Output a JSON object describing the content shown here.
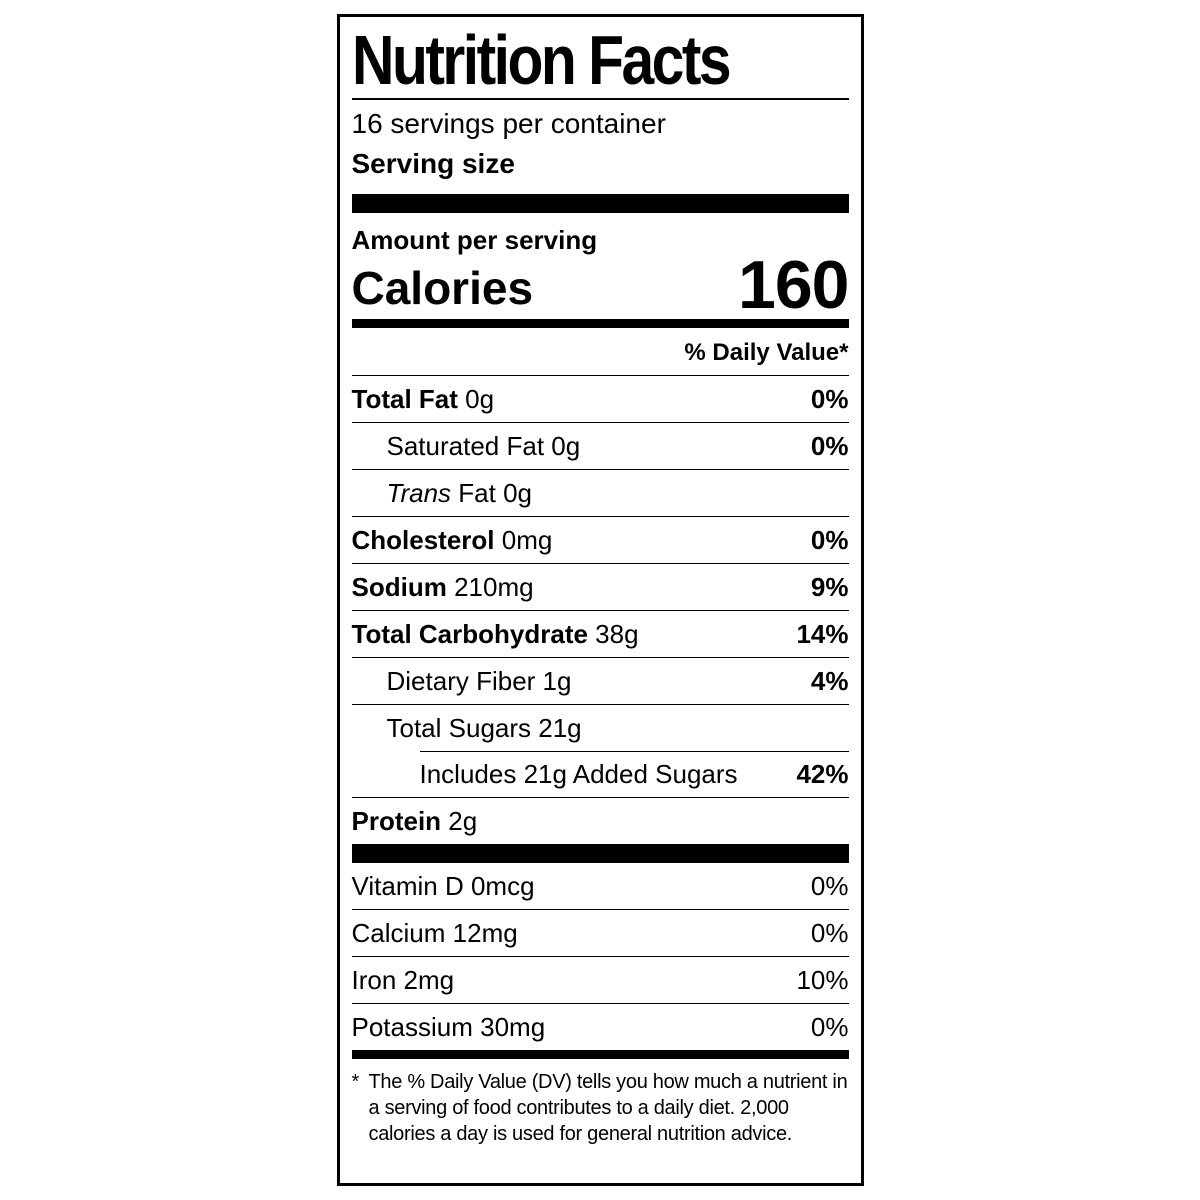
{
  "colors": {
    "ink": "#000000",
    "background": "#ffffff"
  },
  "label": {
    "title": "Nutrition Facts",
    "servings_per_container": "16 servings per container",
    "serving_size": {
      "label": "Serving size",
      "value": ""
    },
    "amount_per_serving": "Amount per serving",
    "calories": {
      "label": "Calories",
      "value": "160"
    },
    "daily_value_header": "% Daily Value*",
    "nutrients": [
      {
        "name": "Total Fat",
        "amount": "0g",
        "dv": "0%",
        "name_bold": true,
        "dv_bold": true,
        "indent": 0,
        "separator": "none"
      },
      {
        "name": "Saturated Fat",
        "amount": "0g",
        "dv": "0%",
        "name_bold": false,
        "dv_bold": true,
        "indent": 1,
        "separator": "full"
      },
      {
        "name": "Fat",
        "italic_prefix": "Trans",
        "amount": "0g",
        "dv": "",
        "name_bold": false,
        "dv_bold": false,
        "indent": 1,
        "separator": "full"
      },
      {
        "name": "Cholesterol",
        "amount": "0mg",
        "dv": "0%",
        "name_bold": true,
        "dv_bold": true,
        "indent": 0,
        "separator": "full"
      },
      {
        "name": "Sodium",
        "amount": "210mg",
        "dv": "9%",
        "name_bold": true,
        "dv_bold": true,
        "indent": 0,
        "separator": "full"
      },
      {
        "name": "Total Carbohydrate",
        "amount": "38g",
        "dv": "14%",
        "name_bold": true,
        "dv_bold": true,
        "indent": 0,
        "separator": "full"
      },
      {
        "name": "Dietary Fiber",
        "amount": "1g",
        "dv": "4%",
        "name_bold": false,
        "dv_bold": true,
        "indent": 1,
        "separator": "full"
      },
      {
        "name": "Total Sugars",
        "amount": "21g",
        "dv": "",
        "name_bold": false,
        "dv_bold": false,
        "indent": 1,
        "separator": "full"
      },
      {
        "name": "Includes 21g Added Sugars",
        "amount": "",
        "dv": "42%",
        "name_bold": false,
        "dv_bold": true,
        "indent": 2,
        "separator": "indented"
      },
      {
        "name": "Protein",
        "amount": "2g",
        "dv": "",
        "name_bold": true,
        "dv_bold": false,
        "indent": 0,
        "separator": "full"
      }
    ],
    "vitamins": [
      {
        "name": "Vitamin D",
        "amount": "0mcg",
        "dv": "0%",
        "name_bold": false,
        "dv_bold": false,
        "indent": 0,
        "separator": "none"
      },
      {
        "name": "Calcium",
        "amount": "12mg",
        "dv": "0%",
        "name_bold": false,
        "dv_bold": false,
        "indent": 0,
        "separator": "full"
      },
      {
        "name": "Iron",
        "amount": "2mg",
        "dv": "10%",
        "name_bold": false,
        "dv_bold": false,
        "indent": 0,
        "separator": "full"
      },
      {
        "name": "Potassium",
        "amount": "30mg",
        "dv": "0%",
        "name_bold": false,
        "dv_bold": false,
        "indent": 0,
        "separator": "full"
      }
    ],
    "footnote_marker": "*",
    "footnote": "The % Daily Value (DV) tells you how much a nutrient in a serving of food contributes to a daily diet. 2,000 calories a day is used for general nutrition advice."
  }
}
